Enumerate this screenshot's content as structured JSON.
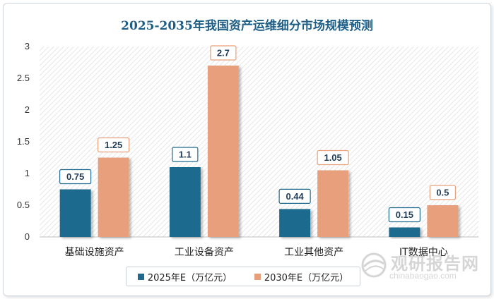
{
  "chart_data": {
    "type": "bar",
    "title": "2025-2035年我国资产运维细分市场规模预测",
    "categories": [
      "基础设施资产",
      "工业设备资产",
      "工业其他资产",
      "IT数据中心"
    ],
    "series": [
      {
        "name": "2025年E（万亿元）",
        "values": [
          0.75,
          1.1,
          0.44,
          0.15
        ],
        "color": "#1f6a8e"
      },
      {
        "name": "2030年E（万亿元）",
        "values": [
          1.25,
          2.7,
          1.05,
          0.5
        ],
        "color": "#e8a07c"
      }
    ],
    "y_ticks": [
      "0",
      "0.5",
      "1",
      "1.5",
      "2",
      "2.5",
      "3"
    ],
    "ylim": [
      0,
      3
    ],
    "grid": false,
    "legend_position": "bottom"
  },
  "watermark": {
    "cn": "观研报告网",
    "en": "chinabaogao.com",
    "icon": "globe-logo-icon"
  }
}
